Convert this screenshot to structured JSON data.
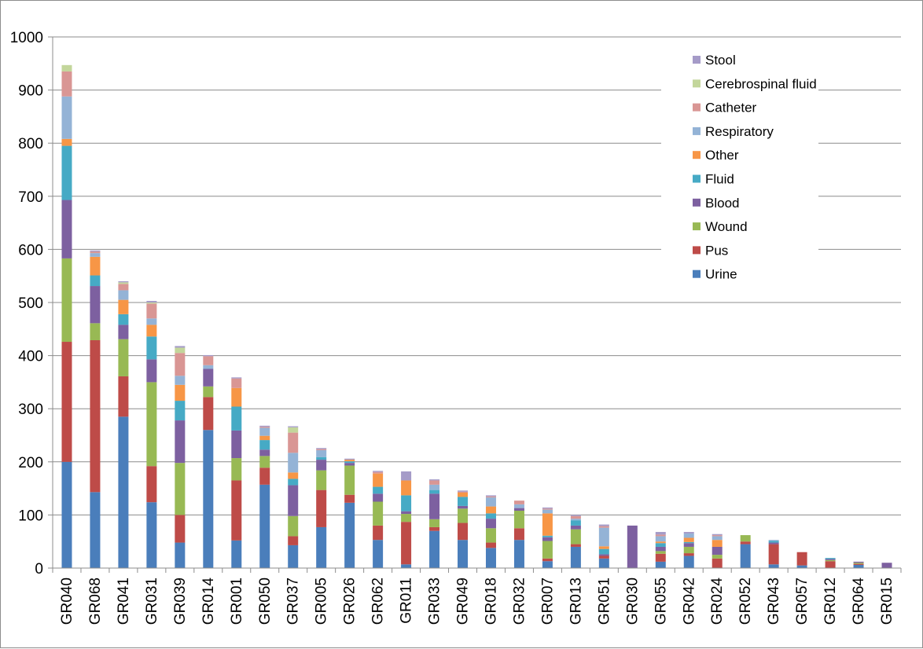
{
  "chart_data": {
    "type": "bar",
    "stacked": true,
    "ylim": [
      0,
      1000
    ],
    "yticks": [
      0,
      100,
      200,
      300,
      400,
      500,
      600,
      700,
      800,
      900,
      1000
    ],
    "grid": true,
    "legend_position": "top-right",
    "categories": [
      "GR040",
      "GR068",
      "GR041",
      "GR031",
      "GR039",
      "GR014",
      "GR001",
      "GR050",
      "GR037",
      "GR005",
      "GR026",
      "GR062",
      "GR011",
      "GR033",
      "GR049",
      "GR018",
      "GR032",
      "GR007",
      "GR013",
      "GR051",
      "GR030",
      "GR055",
      "GR042",
      "GR024",
      "GR052",
      "GR043",
      "GR057",
      "GR012",
      "GR064",
      "GR015"
    ],
    "series": [
      {
        "name": "Urine",
        "color": "#4a7ebb",
        "values": [
          200,
          143,
          285,
          124,
          48,
          260,
          52,
          157,
          43,
          77,
          123,
          53,
          7,
          70,
          53,
          38,
          53,
          13,
          40,
          18,
          0,
          12,
          23,
          0,
          45,
          7,
          5,
          0,
          6,
          0
        ]
      },
      {
        "name": "Pus",
        "color": "#be4b48",
        "values": [
          226,
          286,
          76,
          68,
          52,
          62,
          113,
          32,
          17,
          70,
          15,
          27,
          80,
          7,
          32,
          10,
          22,
          5,
          5,
          5,
          0,
          15,
          5,
          18,
          5,
          38,
          25,
          13,
          2,
          0
        ]
      },
      {
        "name": "Wound",
        "color": "#98b954",
        "values": [
          157,
          32,
          70,
          158,
          98,
          20,
          42,
          22,
          38,
          37,
          55,
          45,
          15,
          15,
          27,
          27,
          33,
          33,
          28,
          0,
          0,
          5,
          12,
          7,
          12,
          0,
          0,
          2,
          2,
          0
        ]
      },
      {
        "name": "Blood",
        "color": "#7d60a0",
        "values": [
          110,
          70,
          27,
          43,
          80,
          33,
          52,
          12,
          58,
          20,
          5,
          15,
          5,
          48,
          5,
          18,
          5,
          7,
          7,
          3,
          80,
          8,
          7,
          15,
          0,
          3,
          0,
          2,
          2,
          10
        ]
      },
      {
        "name": "Fluid",
        "color": "#46aac5",
        "values": [
          102,
          20,
          20,
          43,
          37,
          0,
          45,
          18,
          12,
          5,
          3,
          13,
          30,
          7,
          17,
          10,
          0,
          3,
          10,
          10,
          0,
          7,
          2,
          0,
          0,
          3,
          0,
          2,
          0,
          0
        ]
      },
      {
        "name": "Other",
        "color": "#f79646",
        "values": [
          13,
          35,
          27,
          22,
          30,
          0,
          35,
          8,
          12,
          0,
          3,
          25,
          28,
          0,
          8,
          13,
          0,
          42,
          0,
          5,
          0,
          3,
          8,
          13,
          0,
          0,
          0,
          0,
          0,
          0
        ]
      },
      {
        "name": "Respiratory",
        "color": "#94b3d6",
        "values": [
          80,
          7,
          18,
          12,
          17,
          7,
          0,
          15,
          37,
          13,
          0,
          0,
          0,
          10,
          0,
          17,
          7,
          7,
          3,
          35,
          0,
          10,
          8,
          7,
          0,
          2,
          0,
          0,
          0,
          0
        ]
      },
      {
        "name": "Catheter",
        "color": "#d99694",
        "values": [
          47,
          3,
          12,
          28,
          43,
          17,
          18,
          2,
          38,
          2,
          0,
          3,
          0,
          8,
          2,
          2,
          7,
          2,
          5,
          3,
          0,
          3,
          0,
          2,
          0,
          0,
          0,
          0,
          0,
          0
        ]
      },
      {
        "name": "Cerebrospinal fluid",
        "color": "#c3d69b",
        "values": [
          12,
          0,
          3,
          2,
          10,
          0,
          0,
          0,
          10,
          0,
          0,
          0,
          0,
          0,
          0,
          0,
          0,
          0,
          0,
          0,
          0,
          0,
          0,
          0,
          0,
          0,
          0,
          0,
          0,
          0
        ]
      },
      {
        "name": "Stool",
        "color": "#a59bc8",
        "values": [
          0,
          2,
          2,
          3,
          3,
          2,
          2,
          2,
          2,
          2,
          2,
          2,
          17,
          2,
          2,
          2,
          0,
          2,
          2,
          3,
          0,
          5,
          3,
          2,
          0,
          0,
          0,
          0,
          0,
          0
        ]
      }
    ]
  }
}
